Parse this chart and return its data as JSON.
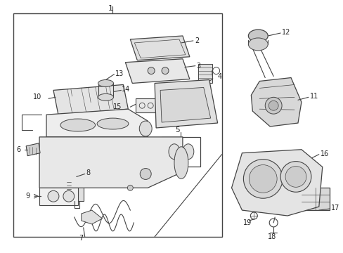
{
  "background_color": "#ffffff",
  "line_color": "#444444",
  "fig_width": 4.89,
  "fig_height": 3.6,
  "dpi": 100
}
